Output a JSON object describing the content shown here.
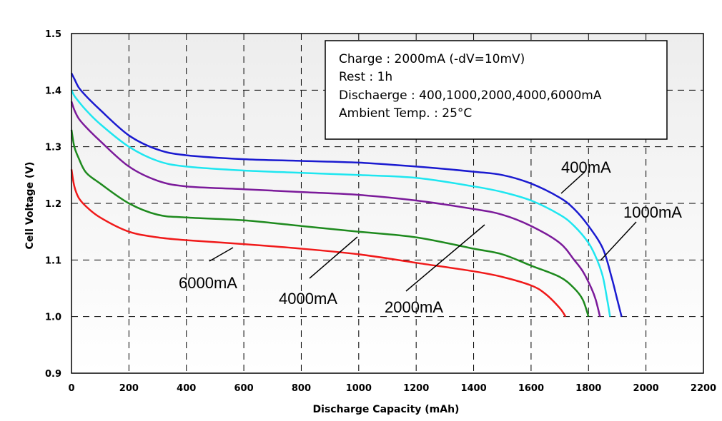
{
  "chart_data": {
    "type": "line",
    "xlabel": "Discharge Capacity (mAh)",
    "ylabel": "Cell Voltage (V)",
    "xlim": [
      0,
      2200
    ],
    "ylim": [
      0.9,
      1.5
    ],
    "xticks": [
      "0",
      "200",
      "400",
      "600",
      "800",
      "1000",
      "1200",
      "1400",
      "1600",
      "1800",
      "2000",
      "2200"
    ],
    "yticks": [
      "0.9",
      "1.0",
      "1.1",
      "1.2",
      "1.3",
      "1.4",
      "1.5"
    ],
    "grid": true,
    "notes": [
      "Charge : 2000mA (-dV=10mV)",
      "Rest : 1h",
      "Dischaerge : 400,1000,2000,4000,6000mA",
      "Ambient Temp. : 25°C"
    ],
    "series": [
      {
        "name": "400mA",
        "color": "#1a1ad0",
        "points": [
          [
            0,
            1.43
          ],
          [
            10,
            1.42
          ],
          [
            25,
            1.405
          ],
          [
            50,
            1.39
          ],
          [
            100,
            1.365
          ],
          [
            200,
            1.32
          ],
          [
            300,
            1.295
          ],
          [
            400,
            1.285
          ],
          [
            600,
            1.278
          ],
          [
            800,
            1.275
          ],
          [
            1000,
            1.272
          ],
          [
            1200,
            1.265
          ],
          [
            1400,
            1.256
          ],
          [
            1500,
            1.25
          ],
          [
            1600,
            1.235
          ],
          [
            1700,
            1.21
          ],
          [
            1750,
            1.19
          ],
          [
            1800,
            1.16
          ],
          [
            1850,
            1.12
          ],
          [
            1880,
            1.07
          ],
          [
            1900,
            1.03
          ],
          [
            1915,
            1.0
          ]
        ]
      },
      {
        "name": "1000mA",
        "color": "#1ee6f0",
        "points": [
          [
            0,
            1.4
          ],
          [
            10,
            1.39
          ],
          [
            25,
            1.38
          ],
          [
            50,
            1.365
          ],
          [
            100,
            1.34
          ],
          [
            200,
            1.3
          ],
          [
            300,
            1.275
          ],
          [
            400,
            1.265
          ],
          [
            600,
            1.258
          ],
          [
            800,
            1.254
          ],
          [
            1000,
            1.25
          ],
          [
            1200,
            1.245
          ],
          [
            1400,
            1.23
          ],
          [
            1500,
            1.22
          ],
          [
            1600,
            1.205
          ],
          [
            1700,
            1.18
          ],
          [
            1750,
            1.16
          ],
          [
            1800,
            1.13
          ],
          [
            1830,
            1.1
          ],
          [
            1850,
            1.07
          ],
          [
            1865,
            1.03
          ],
          [
            1875,
            1.0
          ]
        ]
      },
      {
        "name": "2000mA",
        "color": "#7b1a9a",
        "points": [
          [
            0,
            1.38
          ],
          [
            10,
            1.365
          ],
          [
            25,
            1.35
          ],
          [
            50,
            1.335
          ],
          [
            100,
            1.31
          ],
          [
            200,
            1.265
          ],
          [
            300,
            1.24
          ],
          [
            400,
            1.23
          ],
          [
            600,
            1.225
          ],
          [
            800,
            1.22
          ],
          [
            1000,
            1.215
          ],
          [
            1200,
            1.205
          ],
          [
            1400,
            1.19
          ],
          [
            1500,
            1.18
          ],
          [
            1600,
            1.16
          ],
          [
            1700,
            1.13
          ],
          [
            1750,
            1.1
          ],
          [
            1780,
            1.08
          ],
          [
            1810,
            1.05
          ],
          [
            1825,
            1.03
          ],
          [
            1840,
            1.0
          ]
        ]
      },
      {
        "name": "4000mA",
        "color": "#1e8a1e",
        "points": [
          [
            0,
            1.33
          ],
          [
            10,
            1.3
          ],
          [
            25,
            1.28
          ],
          [
            50,
            1.255
          ],
          [
            100,
            1.235
          ],
          [
            200,
            1.2
          ],
          [
            300,
            1.18
          ],
          [
            400,
            1.175
          ],
          [
            600,
            1.17
          ],
          [
            800,
            1.16
          ],
          [
            1000,
            1.15
          ],
          [
            1200,
            1.14
          ],
          [
            1400,
            1.12
          ],
          [
            1500,
            1.11
          ],
          [
            1600,
            1.09
          ],
          [
            1700,
            1.07
          ],
          [
            1750,
            1.05
          ],
          [
            1780,
            1.03
          ],
          [
            1800,
            1.0
          ]
        ]
      },
      {
        "name": "6000mA",
        "color": "#f01a1a",
        "points": [
          [
            0,
            1.26
          ],
          [
            10,
            1.23
          ],
          [
            25,
            1.21
          ],
          [
            50,
            1.195
          ],
          [
            100,
            1.175
          ],
          [
            200,
            1.15
          ],
          [
            300,
            1.14
          ],
          [
            400,
            1.135
          ],
          [
            600,
            1.128
          ],
          [
            800,
            1.12
          ],
          [
            1000,
            1.11
          ],
          [
            1200,
            1.095
          ],
          [
            1400,
            1.08
          ],
          [
            1500,
            1.07
          ],
          [
            1600,
            1.055
          ],
          [
            1650,
            1.04
          ],
          [
            1700,
            1.015
          ],
          [
            1720,
            1.0
          ]
        ]
      }
    ]
  }
}
